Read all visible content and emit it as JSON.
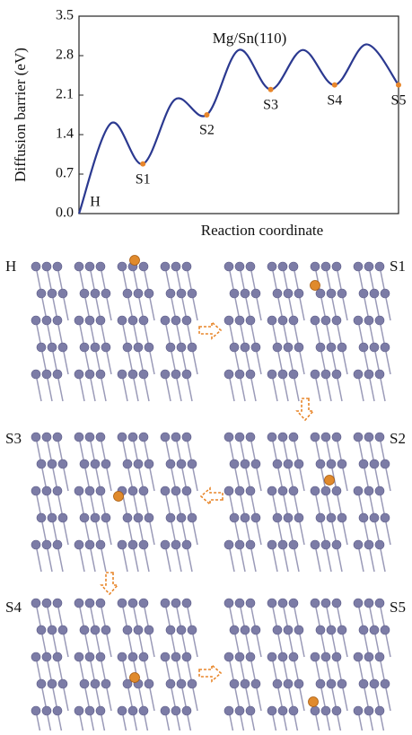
{
  "chart_data": {
    "type": "line",
    "annotation": "Mg/Sn(110)",
    "x_label": "Reaction coordinate",
    "y_label": "Diffusion barrier (eV)",
    "categories": [
      "H",
      null,
      "S1",
      null,
      "S2",
      null,
      "S3",
      null,
      "S4",
      null,
      "S5"
    ],
    "series": [
      {
        "color": "#2b3990",
        "values": [
          0,
          1.6,
          0.88,
          2.02,
          1.75,
          2.9,
          2.2,
          2.9,
          2.28,
          3.0,
          2.28
        ]
      }
    ],
    "marker_color": "#e8862a",
    "ylim": [
      0,
      3.5
    ],
    "yticks": [
      {
        "value": 0,
        "label": "0.0"
      },
      0.7,
      1.4,
      2.1,
      2.8,
      3.5
    ]
  },
  "panels": [
    "H",
    "S1",
    "S3",
    "S2",
    "S4",
    "S5"
  ]
}
